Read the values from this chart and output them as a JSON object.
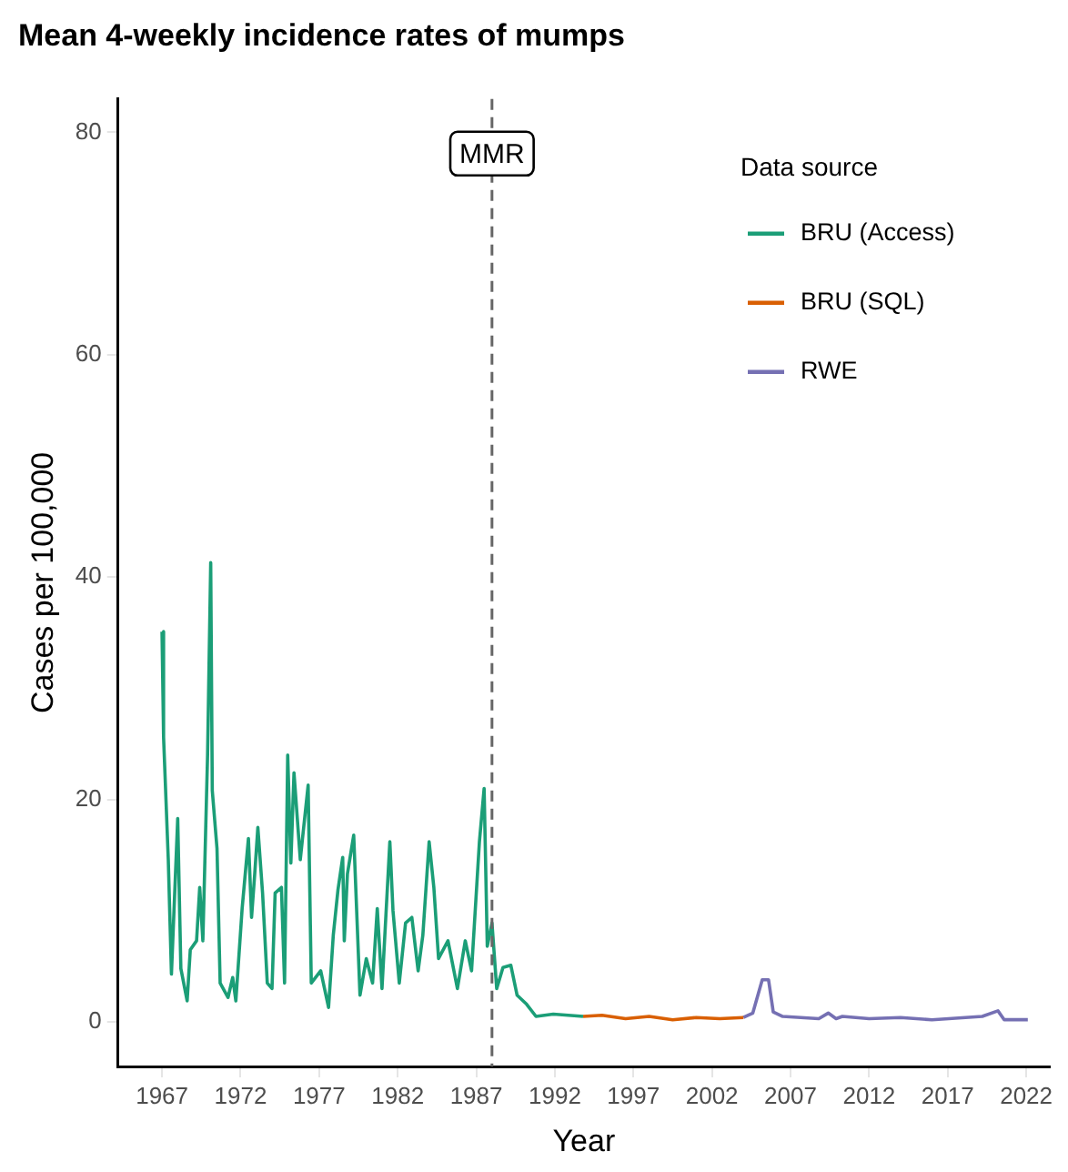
{
  "chart_data": {
    "type": "line",
    "title": "Mean 4-weekly incidence rates of mumps",
    "xlabel": "Year",
    "ylabel": "Cases per 100,000",
    "legend_title": "Data source",
    "legend": "top right",
    "grid": false,
    "marker": "none",
    "line_style": "solid",
    "xlim": [
      1964.2,
      2023.5
    ],
    "xticks": [
      1967,
      1972,
      1977,
      1982,
      1987,
      1992,
      1997,
      2002,
      2007,
      2012,
      2017,
      2022
    ],
    "ylim": [
      -4,
      83
    ],
    "yticks": [
      0,
      20,
      40,
      60,
      80
    ],
    "ref_lines": [
      {
        "axis": "x",
        "value": 1988.0,
        "label": "MMR",
        "color": "#666666",
        "line_style": "dashed"
      }
    ],
    "series": [
      {
        "name": "BRU (Access)",
        "color": "#1b9e77",
        "x": [
          1967.0,
          1967.1,
          1967.4,
          1967.6,
          1968.0,
          1968.2,
          1968.6,
          1968.8,
          1969.2,
          1969.4,
          1969.6,
          1969.9,
          1970.1,
          1970.2,
          1970.5,
          1970.7,
          1971.2,
          1971.5,
          1971.7,
          1972.1,
          1972.5,
          1972.7,
          1972.9,
          1973.1,
          1973.4,
          1973.7,
          1974.0,
          1974.2,
          1974.6,
          1974.8,
          1975.0,
          1975.2,
          1975.4,
          1975.8,
          1976.3,
          1976.5,
          1977.1,
          1977.6,
          1977.9,
          1978.2,
          1978.5,
          1978.6,
          1978.8,
          1979.2,
          1979.6,
          1980.0,
          1980.4,
          1980.7,
          1981.0,
          1981.5,
          1981.7,
          1982.1,
          1982.5,
          1982.9,
          1983.3,
          1983.6,
          1984.0,
          1984.3,
          1984.6,
          1985.2,
          1985.8,
          1986.3,
          1986.7,
          1987.2,
          1987.5,
          1987.7,
          1988.0,
          1988.3,
          1988.7,
          1989.2,
          1989.6,
          1990.2,
          1990.8,
          1991.9,
          1993.8
        ],
        "values": [
          35.1,
          25.6,
          14.6,
          4.3,
          18.3,
          4.8,
          1.9,
          6.5,
          7.3,
          12.1,
          7.3,
          24.0,
          41.3,
          20.8,
          15.6,
          3.5,
          2.2,
          4.0,
          1.9,
          10.2,
          16.5,
          9.4,
          13.3,
          17.5,
          11.6,
          3.5,
          3.0,
          11.6,
          12.1,
          3.5,
          24.0,
          14.3,
          22.4,
          14.6,
          21.3,
          3.5,
          4.6,
          1.3,
          7.8,
          11.9,
          14.8,
          7.3,
          13.3,
          16.8,
          2.4,
          5.7,
          3.5,
          10.2,
          3.0,
          16.2,
          10.0,
          3.5,
          8.9,
          9.4,
          4.6,
          7.8,
          16.2,
          12.1,
          5.7,
          7.3,
          3.0,
          7.3,
          4.6,
          16.2,
          21.0,
          6.8,
          8.9,
          3.0,
          4.9,
          5.1,
          2.4,
          1.6,
          0.5,
          0.7,
          0.5
        ]
      },
      {
        "name": "BRU (SQL)",
        "color": "#d95f02",
        "x": [
          1993.8,
          1995.0,
          1996.5,
          1998.0,
          1999.5,
          2001.0,
          2002.5,
          2004.0
        ],
        "values": [
          0.5,
          0.6,
          0.3,
          0.5,
          0.2,
          0.4,
          0.3,
          0.4
        ]
      },
      {
        "name": "RWE",
        "color": "#7570b3",
        "x": [
          2004.0,
          2004.6,
          2005.2,
          2005.6,
          2005.9,
          2006.5,
          2008.8,
          2009.4,
          2009.9,
          2010.3,
          2012.0,
          2014.0,
          2016.0,
          2019.2,
          2020.2,
          2020.6,
          2022.1
        ],
        "values": [
          0.4,
          0.8,
          3.8,
          3.8,
          0.9,
          0.5,
          0.3,
          0.8,
          0.3,
          0.5,
          0.3,
          0.4,
          0.2,
          0.5,
          1.0,
          0.2,
          0.2
        ]
      }
    ]
  }
}
